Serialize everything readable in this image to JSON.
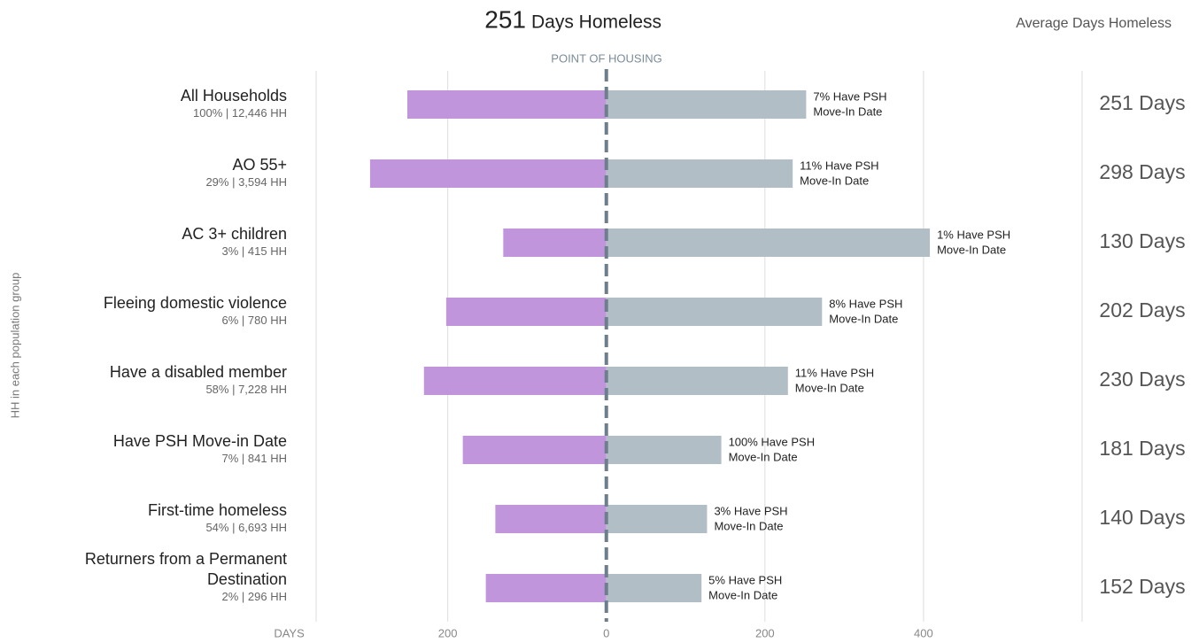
{
  "chart_data": {
    "type": "diverging-bar",
    "title_number": 251,
    "title": "Days Homeless",
    "right_header": "Average Days Homeless",
    "center_label": "POINT OF HOUSING",
    "y_axis_label": "HH in each population group",
    "categories": [
      "All Households",
      "AO 55+",
      "AC 3+ children",
      "Fleeing domestic violence",
      "Have a disabled member",
      "Have PSH Move-in Date",
      "First-time homeless",
      "Returners from a Permanent Destination"
    ],
    "category_subtitles": [
      "100% | 12,446 HH",
      "29% | 3,594 HH",
      "3% | 415 HH",
      "6% | 780 HH",
      "58% | 7,228 HH",
      "7% | 841 HH",
      "54% | 6,693 HH",
      "2% | 296 HH"
    ],
    "series": [
      {
        "side": "left",
        "color": "#c095dc",
        "values": [
          251,
          298,
          130,
          202,
          230,
          181,
          140,
          152
        ],
        "value_labels": [
          "251 Days",
          "298 Days",
          "130 Days",
          "202 Days",
          "230 Days",
          "181 Days",
          "140 Days",
          "152 Days"
        ]
      },
      {
        "side": "right",
        "color": "#b1bec6",
        "values": [
          252,
          235,
          408,
          272,
          229,
          145,
          127,
          120
        ],
        "annotations": [
          [
            "7% Have PSH",
            "Move-In Date"
          ],
          [
            "11% Have PSH",
            "Move-In Date"
          ],
          [
            "1% Have PSH",
            "Move-In Date"
          ],
          [
            "8% Have PSH",
            "Move-In Date"
          ],
          [
            "11% Have PSH",
            "Move-In Date"
          ],
          [
            "100% Have PSH",
            "Move-In Date"
          ],
          [
            "3% Have PSH",
            "Move-In Date"
          ],
          [
            "5% Have PSH",
            "Move-In Date"
          ]
        ]
      }
    ],
    "xlim": [
      -366,
      600
    ],
    "xticks": [
      {
        "value": -400,
        "label": "DAYS"
      },
      {
        "value": -200,
        "label": "200"
      },
      0,
      200,
      400
    ],
    "grid": true
  }
}
